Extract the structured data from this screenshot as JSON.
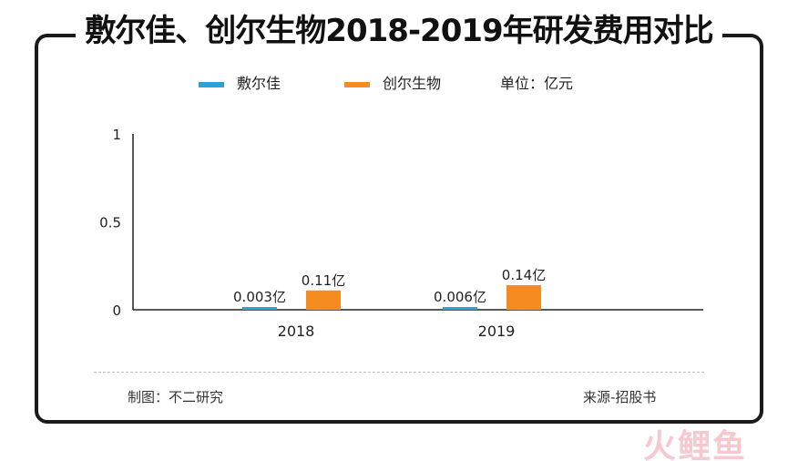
{
  "title": "敷尔佳、创尔生物2018-2019年研发费用对比",
  "unit_label": "单位：亿元",
  "footer": {
    "maker": "制图：不二研究",
    "source": "来源-招股书"
  },
  "watermark": "火鲤鱼",
  "colors": {
    "series_1": "#2aa3d4",
    "series_2": "#f68b1f",
    "axis": "#222222",
    "frame": "#1b1b1b"
  },
  "chart_data": {
    "type": "bar",
    "categories": [
      "2018",
      "2019"
    ],
    "series": [
      {
        "name": "敷尔佳",
        "values": [
          0.003,
          0.006
        ],
        "labels": [
          "0.003亿",
          "0.006亿"
        ]
      },
      {
        "name": "创尔生物",
        "values": [
          0.11,
          0.14
        ],
        "labels": [
          "0.11亿",
          "0.14亿"
        ]
      }
    ],
    "ylim": [
      0,
      1
    ],
    "yticks": [
      "0",
      "0.5",
      "1"
    ],
    "grid": false,
    "legend_position": "top"
  }
}
